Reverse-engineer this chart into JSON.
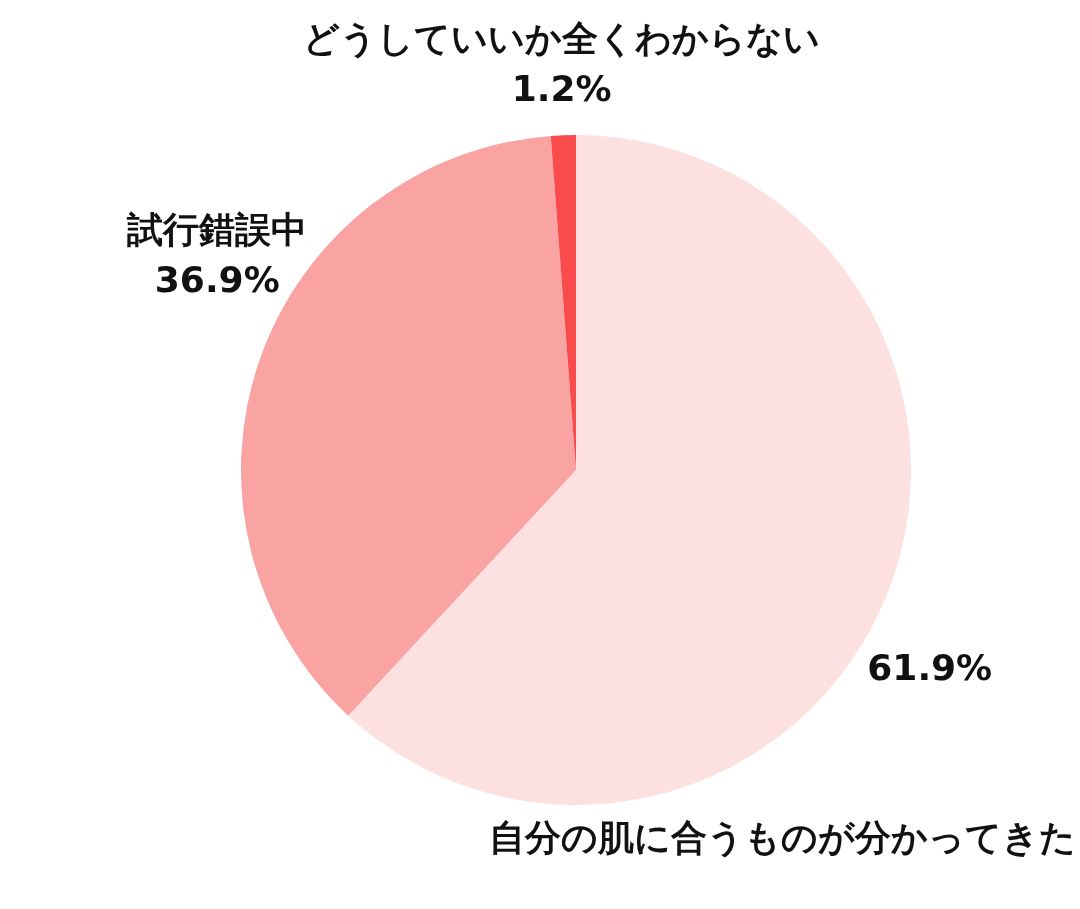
{
  "chart_data": {
    "type": "pie",
    "categories": [
      "自分の肌に合うものが分かってきた",
      "試行錯誤中",
      "どうしていいか全くわからない"
    ],
    "values": [
      61.9,
      36.9,
      1.2
    ],
    "colors": [
      "#fde0e0",
      "#f9a3a3",
      "#f94b4b"
    ],
    "value_labels": [
      "61.9%",
      "36.9%",
      "1.2%"
    ]
  }
}
